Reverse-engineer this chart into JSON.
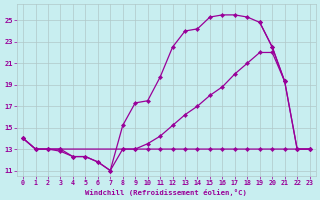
{
  "bg_color": "#c8eef0",
  "line_color": "#990099",
  "grid_color": "#b0c8c8",
  "xlabel": "Windchill (Refroidissement éolien,°C)",
  "xlim": [
    -0.5,
    23.5
  ],
  "ylim": [
    10.5,
    26.5
  ],
  "xticks": [
    0,
    1,
    2,
    3,
    4,
    5,
    6,
    7,
    8,
    9,
    10,
    11,
    12,
    13,
    14,
    15,
    16,
    17,
    18,
    19,
    20,
    21,
    22,
    23
  ],
  "yticks": [
    11,
    13,
    15,
    17,
    19,
    21,
    23,
    25
  ],
  "upper_x": [
    0,
    1,
    2,
    3,
    4,
    5,
    6,
    7,
    8,
    9,
    10,
    11,
    12,
    13,
    14,
    15,
    16,
    17,
    18,
    19,
    20,
    21
  ],
  "upper_y": [
    14.0,
    13.0,
    13.0,
    12.8,
    12.3,
    12.3,
    11.8,
    11.0,
    15.2,
    17.3,
    17.5,
    19.7,
    22.5,
    24.0,
    24.2,
    25.3,
    25.5,
    25.5,
    25.3,
    24.8,
    22.5,
    19.3
  ],
  "upper_close_x": [
    19,
    20,
    21,
    22,
    23
  ],
  "upper_close_y": [
    24.8,
    22.5,
    19.3,
    13.0,
    13.0
  ],
  "mid_x": [
    0,
    1,
    2,
    3,
    8,
    9,
    10,
    11,
    12,
    13,
    14,
    15,
    16,
    17,
    18,
    19,
    20,
    21,
    22,
    23
  ],
  "mid_y": [
    14.0,
    13.0,
    13.0,
    13.0,
    13.0,
    13.0,
    13.5,
    14.2,
    15.2,
    16.2,
    17.0,
    18.0,
    18.8,
    20.0,
    21.0,
    22.0,
    22.0,
    19.3,
    13.0,
    13.0
  ],
  "bot_x": [
    0,
    1,
    2,
    3,
    4,
    5,
    6,
    7,
    8,
    9,
    10,
    11,
    12,
    13,
    14,
    15,
    16,
    17,
    18,
    19,
    20,
    21,
    22,
    23
  ],
  "bot_y": [
    14.0,
    13.0,
    13.0,
    13.0,
    12.3,
    12.3,
    11.8,
    11.0,
    13.0,
    13.0,
    13.0,
    13.0,
    13.0,
    13.0,
    13.0,
    13.0,
    13.0,
    13.0,
    13.0,
    13.0,
    13.0,
    13.0,
    13.0,
    13.0
  ]
}
